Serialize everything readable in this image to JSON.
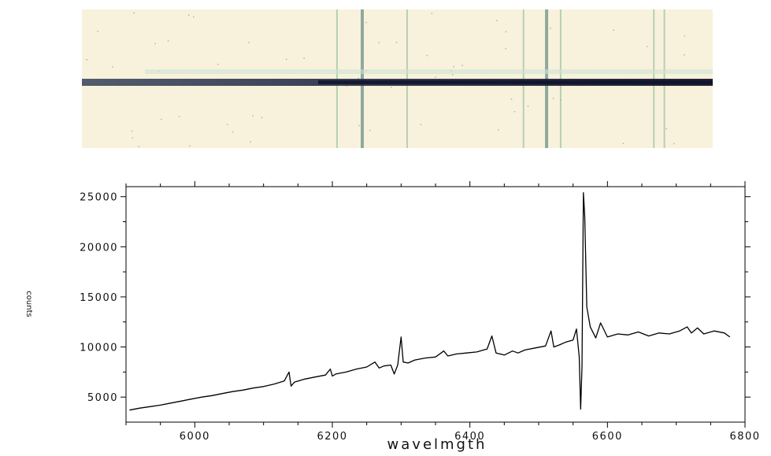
{
  "spectrum_image": {
    "background_color": "#f8f2dc",
    "trace_color": "#1e2340",
    "line_color": "#8ab89a",
    "emission_lines_x": [
      6264,
      6300,
      6364,
      6530,
      6563,
      6583,
      6716,
      6731
    ]
  },
  "chart_data": {
    "type": "line",
    "title": "",
    "xlabel": "wavelmgth",
    "ylabel": "counts",
    "xlim": [
      5900,
      6800
    ],
    "ylim": [
      2500,
      26000
    ],
    "x_ticks": [
      6000,
      6200,
      6400,
      6600,
      6800
    ],
    "y_ticks": [
      5000,
      10000,
      15000,
      20000,
      25000
    ],
    "x_tick_labels": [
      "6000",
      "6200",
      "6400",
      "6600",
      "6800"
    ],
    "y_tick_labels": [
      "5000",
      "10000",
      "15000",
      "20000",
      "25000"
    ],
    "line_color": "#000000",
    "series": [
      {
        "x": [
          5905,
          5920,
          5935,
          5950,
          5965,
          5980,
          5995,
          6010,
          6025,
          6040,
          6055,
          6070,
          6085,
          6100,
          6115,
          6130,
          6137,
          6140,
          6145,
          6160,
          6175,
          6190,
          6197,
          6200,
          6205,
          6220,
          6235,
          6250,
          6262,
          6268,
          6275,
          6285,
          6290,
          6295,
          6300,
          6303,
          6310,
          6320,
          6335,
          6350,
          6362,
          6368,
          6380,
          6395,
          6410,
          6425,
          6432,
          6438,
          6450,
          6462,
          6470,
          6480,
          6495,
          6510,
          6518,
          6522,
          6530,
          6540,
          6550,
          6555,
          6559,
          6561,
          6563,
          6565,
          6567,
          6570,
          6575,
          6583,
          6590,
          6600,
          6615,
          6630,
          6645,
          6660,
          6675,
          6690,
          6705,
          6716,
          6722,
          6731,
          6740,
          6755,
          6770,
          6778
        ],
        "y": [
          3700,
          3900,
          4050,
          4200,
          4400,
          4600,
          4800,
          5000,
          5150,
          5350,
          5550,
          5700,
          5900,
          6050,
          6300,
          6600,
          7500,
          6100,
          6500,
          6800,
          7000,
          7200,
          7800,
          7100,
          7300,
          7500,
          7800,
          8000,
          8500,
          7900,
          8100,
          8200,
          7300,
          8200,
          11000,
          8500,
          8400,
          8700,
          8900,
          9000,
          9600,
          9100,
          9300,
          9400,
          9500,
          9800,
          11100,
          9400,
          9200,
          9600,
          9400,
          9700,
          9900,
          10100,
          11600,
          10000,
          10200,
          10500,
          10700,
          11800,
          9000,
          3800,
          8000,
          25400,
          23000,
          14000,
          12000,
          10900,
          12400,
          11000,
          11300,
          11200,
          11500,
          11100,
          11400,
          11300,
          11600,
          12000,
          11400,
          11900,
          11300,
          11600,
          11400,
          11000
        ]
      }
    ]
  }
}
